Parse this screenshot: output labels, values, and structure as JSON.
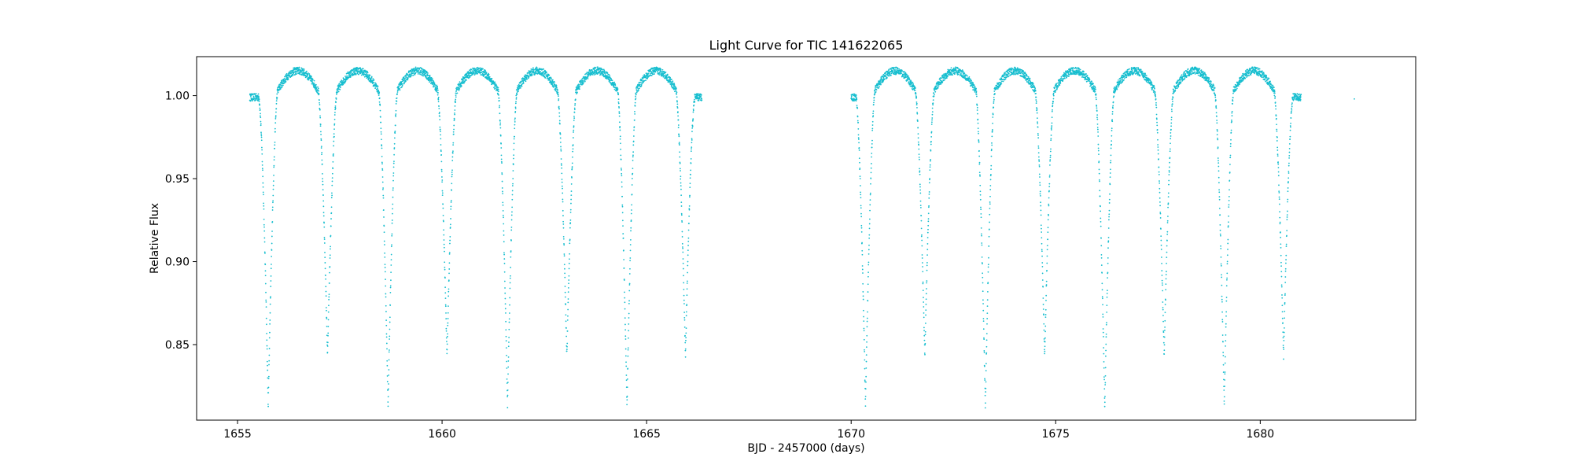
{
  "chart_data": {
    "type": "scatter",
    "title": "Light Curve for TIC 141622065",
    "xlabel": "BJD - 2457000 (days)",
    "ylabel": "Relative Flux",
    "xlim": [
      1654.0,
      1683.8
    ],
    "ylim": [
      0.8045,
      1.0235
    ],
    "xticks": [
      1655,
      1660,
      1665,
      1670,
      1675,
      1680
    ],
    "xtick_labels": [
      "1655",
      "1660",
      "1665",
      "1670",
      "1675",
      "1680"
    ],
    "yticks": [
      0.85,
      0.9,
      0.95,
      1.0
    ],
    "ytick_labels": [
      "0.85",
      "0.90",
      "0.95",
      "1.00"
    ],
    "grid": false,
    "legend": "none",
    "marker_color": "#17becf",
    "series": [
      {
        "segments": [
          [
            1655.3,
            1666.35
          ],
          [
            1670.0,
            1681.0
          ]
        ],
        "baseline_flux": 1.0,
        "out_of_eclipse_peak_flux": 1.013,
        "primary_eclipse_depth_flux": 0.813,
        "secondary_eclipse_depth_flux": 0.843,
        "primary_eclipse_times": [
          1655.75,
          1658.68,
          1661.6,
          1664.52,
          1670.35,
          1673.28,
          1676.2,
          1679.12
        ],
        "secondary_eclipse_times": [
          1657.2,
          1660.12,
          1663.05,
          1665.95,
          1671.8,
          1674.73,
          1677.65,
          1680.57
        ],
        "eclipse_half_width_days": 0.23,
        "isolated_points": [
          [
            1682.3,
            0.998
          ]
        ]
      }
    ]
  }
}
